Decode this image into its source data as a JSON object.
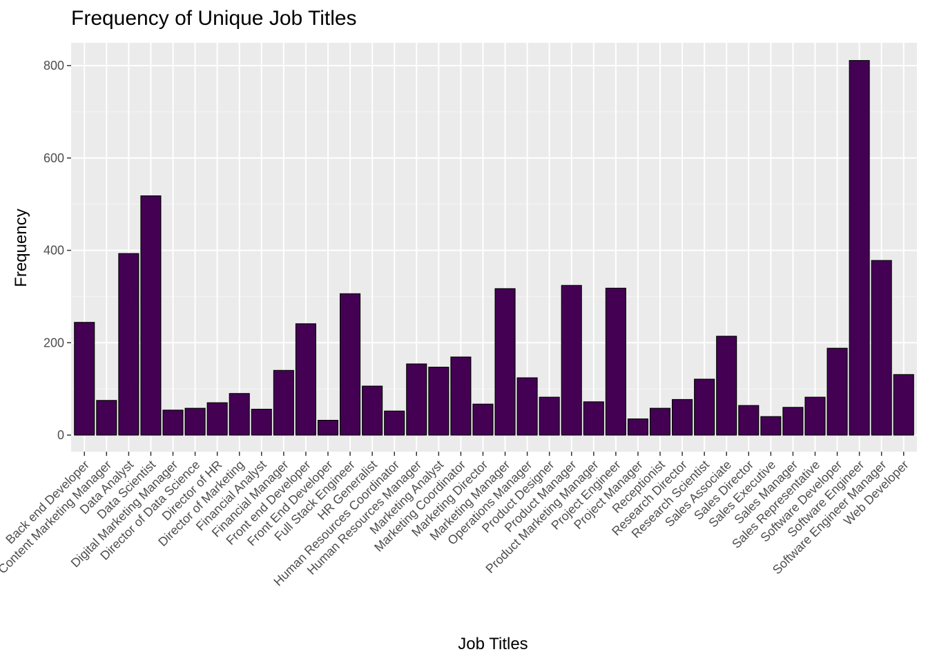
{
  "chart_data": {
    "type": "bar",
    "title": "Frequency of Unique Job Titles",
    "xlabel": "Job Titles",
    "ylabel": "Frequency",
    "ylim": [
      -40,
      850
    ],
    "yticks": [
      0,
      200,
      400,
      600,
      800
    ],
    "grid": true,
    "legend": "none",
    "bar_color": "#440154",
    "panel_color": "#ebebeb",
    "categories": [
      "Back end Developer",
      "Content Marketing Manager",
      "Data Analyst",
      "Data Scientist",
      "Digital Marketing Manager",
      "Director of Data Science",
      "Director of HR",
      "Director of Marketing",
      "Financial Analyst",
      "Financial Manager",
      "Front end Developer",
      "Front End Developer",
      "Full Stack Engineer",
      "HR Generalist",
      "Human Resources Coordinator",
      "Human Resources Manager",
      "Marketing Analyst",
      "Marketing Coordinator",
      "Marketing Director",
      "Marketing Manager",
      "Operations Manager",
      "Product Designer",
      "Product Manager",
      "Product Marketing Manager",
      "Project Engineer",
      "Project Manager",
      "Receptionist",
      "Research Director",
      "Research Scientist",
      "Sales Associate",
      "Sales Director",
      "Sales Executive",
      "Sales Manager",
      "Sales Representative",
      "Software Developer",
      "Software Engineer",
      "Software Engineer Manager",
      "Web Developer"
    ],
    "values": [
      244,
      75,
      393,
      518,
      54,
      58,
      70,
      90,
      56,
      140,
      241,
      32,
      306,
      106,
      52,
      154,
      147,
      169,
      67,
      317,
      124,
      82,
      324,
      72,
      318,
      35,
      58,
      77,
      121,
      214,
      64,
      40,
      60,
      82,
      188,
      811,
      378,
      131
    ]
  }
}
